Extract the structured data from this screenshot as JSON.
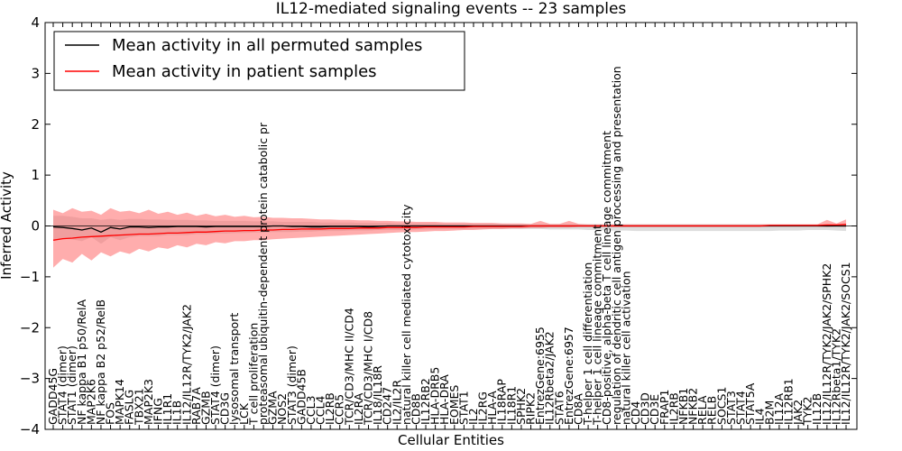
{
  "chart_data": {
    "type": "line",
    "title": "IL12-mediated signaling events -- 23 samples",
    "xlabel": "Cellular Entities",
    "ylabel": "Inferred Activity",
    "ylim": [
      -4,
      4
    ],
    "yticks": [
      "4",
      "3",
      "2",
      "1",
      "0",
      "−1",
      "−2",
      "−3",
      "−4"
    ],
    "yticks_values": [
      4,
      3,
      2,
      1,
      0,
      -1,
      -2,
      -3,
      -4
    ],
    "legend": {
      "placement": "top-left",
      "entries": [
        {
          "label": "Mean activity in all permuted samples",
          "color": "#000000"
        },
        {
          "label": "Mean activity in patient samples",
          "color": "#ff0000"
        }
      ]
    },
    "categories": [
      "GADD45G",
      "STAT4 (dimer)",
      "STAT1 (dimer)",
      "NF kappa B1 p50/RelA",
      "MAP2K6",
      "NF kappa B2 p52/RelB",
      "FOS",
      "MAPK14",
      "FASLG",
      "TBX21",
      "MAP2K3",
      "IFNG",
      "IL1R1",
      "IL1B",
      "IL12/IL12R/TYK2/JAK2",
      "RAB7A",
      "GZMB",
      "STAT4 (dimer)",
      "CD3G",
      "lysosomal transport",
      "LCK",
      "T cell proliferation",
      "proteasomal ubiquitin-dependent protein catabolic pr",
      "GZMA",
      "NOS2",
      "STAT3 (dimer)",
      "GADD45B",
      "CCL3",
      "CCL4",
      "IL2RB",
      "CCR5",
      "TCR/CD3/MHC II/CD4",
      "IL2RA",
      "TCR/CD3/MHC I/CD8",
      "IL18/IL18R",
      "CD247",
      "IL2/IL2R",
      "natural killer cell mediated cytotoxicity",
      "CD8B",
      "IL12RB2",
      "HLA-DRB5",
      "HLA-DRA",
      "EOMES",
      "STAT1",
      "IL2",
      "IL2RG",
      "HLA-A",
      "IL18RAP",
      "IL18R1",
      "SPHK2",
      "RIPK2",
      "EntrezGene:6955",
      "IL12Rbeta2/JAK2",
      "STAT6",
      "EntrezGene:6957",
      "CD8A",
      "T-helper 1 cell differentiation",
      "T-helper 1 cell lineage commitment",
      "CD8-positive, alpha-beta T cell lineage commitment",
      "regulation of dendritic cell antigen processing and presentation",
      "natural killer cell activation",
      "CD4",
      "CD3D",
      "CD3E",
      "FRAP1",
      "IL2RB",
      "NFKB1",
      "NFKB2",
      "RELA",
      "RELB",
      "SOCS1",
      "STAT3",
      "STAT4",
      "STAT5A",
      "IL4",
      "B2M",
      "IL12A",
      "IL12RB1",
      "JAK2",
      "TYK2",
      "IL12B",
      "IL12/IL12R/TYK2/JAK2/SPHK2",
      "IL12Rbeta1/TYK2",
      "IL12/IL12R/TYK2/JAK2/SOCS1"
    ],
    "series": [
      {
        "name": "Mean activity in all permuted samples",
        "color": "#000000",
        "values": [
          -0.02,
          -0.03,
          -0.05,
          -0.08,
          -0.04,
          -0.12,
          -0.03,
          -0.06,
          -0.02,
          -0.02,
          -0.03,
          -0.02,
          -0.02,
          -0.01,
          -0.01,
          -0.01,
          -0.02,
          -0.01,
          -0.01,
          -0.01,
          -0.01,
          -0.01,
          -0.01,
          0.0,
          0.0,
          -0.01,
          -0.01,
          -0.02,
          -0.02,
          -0.01,
          -0.01,
          -0.01,
          -0.01,
          -0.02,
          -0.01,
          0.0,
          0.0,
          0.0,
          0.0,
          0.0,
          0.0,
          0.0,
          0.0,
          0.0,
          0.0,
          0.0,
          0.0,
          0.0,
          0.0,
          0.0,
          0.0,
          0.0,
          0.0,
          0.0,
          0.0,
          0.0,
          0.0,
          0.0,
          0.0,
          0.0,
          0.0,
          0.0,
          0.0,
          0.0,
          0.0,
          0.0,
          0.0,
          0.0,
          0.0,
          0.0,
          0.0,
          0.0,
          0.0,
          0.0,
          0.0,
          0.0,
          0.0,
          0.0,
          0.0,
          0.0,
          0.0,
          0.0,
          0.0,
          0.0
        ]
      },
      {
        "name": "Mean activity in patient samples",
        "color": "#ff0000",
        "values": [
          -0.28,
          -0.25,
          -0.24,
          -0.22,
          -0.21,
          -0.2,
          -0.19,
          -0.18,
          -0.17,
          -0.16,
          -0.16,
          -0.15,
          -0.14,
          -0.14,
          -0.13,
          -0.12,
          -0.12,
          -0.11,
          -0.1,
          -0.1,
          -0.09,
          -0.09,
          -0.08,
          -0.08,
          -0.07,
          -0.07,
          -0.06,
          -0.06,
          -0.06,
          -0.05,
          -0.05,
          -0.05,
          -0.04,
          -0.04,
          -0.04,
          -0.03,
          -0.03,
          -0.03,
          -0.03,
          -0.02,
          -0.02,
          -0.02,
          -0.02,
          -0.02,
          -0.01,
          -0.01,
          -0.01,
          -0.01,
          -0.01,
          -0.01,
          0.0,
          0.0,
          0.0,
          0.0,
          0.0,
          0.0,
          0.0,
          0.0,
          0.0,
          0.0,
          0.0,
          0.0,
          0.0,
          0.0,
          0.0,
          0.0,
          0.0,
          0.0,
          0.0,
          0.0,
          0.0,
          0.0,
          0.0,
          0.0,
          0.0,
          0.01,
          0.01,
          0.01,
          0.01,
          0.01,
          0.01,
          0.02,
          0.02,
          0.03
        ]
      }
    ],
    "bands": [
      {
        "name": "permuted spread",
        "color": "#c8c8c8",
        "lower": [
          -0.28,
          -0.25,
          -0.26,
          -0.3,
          -0.22,
          -0.35,
          -0.22,
          -0.28,
          -0.22,
          -0.2,
          -0.2,
          -0.2,
          -0.18,
          -0.18,
          -0.18,
          -0.16,
          -0.16,
          -0.15,
          -0.15,
          -0.14,
          -0.14,
          -0.13,
          -0.13,
          -0.12,
          -0.12,
          -0.12,
          -0.11,
          -0.11,
          -0.1,
          -0.1,
          -0.1,
          -0.09,
          -0.09,
          -0.09,
          -0.08,
          -0.08,
          -0.08,
          -0.08,
          -0.07,
          -0.07,
          -0.07,
          -0.06,
          -0.06,
          -0.06,
          -0.06,
          -0.06,
          -0.06,
          -0.06,
          -0.06,
          -0.06,
          -0.06,
          -0.06,
          -0.07,
          -0.07,
          -0.07,
          -0.07,
          -0.08,
          -0.08,
          -0.09,
          -0.09,
          -0.09,
          -0.1,
          -0.1,
          -0.1,
          -0.1,
          -0.1,
          -0.1,
          -0.1,
          -0.1,
          -0.1,
          -0.1,
          -0.1,
          -0.1,
          -0.1,
          -0.1,
          -0.1,
          -0.09,
          -0.09,
          -0.09,
          -0.08,
          -0.08,
          -0.08,
          -0.09,
          -0.1
        ],
        "upper": [
          0.2,
          0.2,
          0.18,
          0.15,
          0.15,
          0.12,
          0.14,
          0.12,
          0.14,
          0.14,
          0.13,
          0.13,
          0.12,
          0.12,
          0.12,
          0.11,
          0.11,
          0.1,
          0.1,
          0.1,
          0.1,
          0.09,
          0.09,
          0.09,
          0.08,
          0.08,
          0.08,
          0.08,
          0.07,
          0.07,
          0.07,
          0.07,
          0.06,
          0.06,
          0.06,
          0.06,
          0.05,
          0.05,
          0.05,
          0.05,
          0.05,
          0.04,
          0.04,
          0.04,
          0.04,
          0.04,
          0.04,
          0.04,
          0.03,
          0.03,
          0.03,
          0.03,
          0.03,
          0.03,
          0.03,
          0.03,
          0.03,
          0.03,
          0.03,
          0.03,
          0.03,
          0.03,
          0.03,
          0.03,
          0.03,
          0.03,
          0.03,
          0.03,
          0.03,
          0.03,
          0.03,
          0.03,
          0.03,
          0.03,
          0.03,
          0.03,
          0.03,
          0.03,
          0.03,
          0.03,
          0.03,
          0.03,
          0.03,
          0.03
        ]
      },
      {
        "name": "patient spread",
        "color": "#ff6a6a",
        "lower": [
          -0.82,
          -0.65,
          -0.72,
          -0.55,
          -0.68,
          -0.52,
          -0.6,
          -0.5,
          -0.55,
          -0.45,
          -0.5,
          -0.42,
          -0.45,
          -0.38,
          -0.42,
          -0.35,
          -0.38,
          -0.32,
          -0.34,
          -0.3,
          -0.3,
          -0.28,
          -0.28,
          -0.26,
          -0.25,
          -0.24,
          -0.23,
          -0.22,
          -0.21,
          -0.2,
          -0.19,
          -0.18,
          -0.17,
          -0.16,
          -0.15,
          -0.14,
          -0.13,
          -0.12,
          -0.12,
          -0.11,
          -0.1,
          -0.1,
          -0.09,
          -0.08,
          -0.08,
          -0.07,
          -0.06,
          -0.06,
          -0.05,
          -0.05,
          -0.04,
          -0.04,
          -0.03,
          -0.03,
          -0.03,
          -0.02,
          -0.02,
          -0.02,
          -0.02,
          -0.02,
          -0.02,
          -0.02,
          -0.02,
          -0.02,
          -0.02,
          -0.02,
          -0.02,
          -0.02,
          -0.02,
          -0.02,
          -0.02,
          -0.02,
          -0.02,
          -0.02,
          -0.02,
          -0.01,
          -0.01,
          -0.01,
          -0.01,
          -0.01,
          -0.01,
          -0.02,
          -0.01,
          -0.02
        ],
        "upper": [
          0.32,
          0.25,
          0.35,
          0.28,
          0.3,
          0.22,
          0.35,
          0.28,
          0.3,
          0.25,
          0.32,
          0.24,
          0.28,
          0.22,
          0.26,
          0.2,
          0.24,
          0.19,
          0.22,
          0.18,
          0.2,
          0.17,
          0.18,
          0.16,
          0.16,
          0.15,
          0.15,
          0.14,
          0.13,
          0.13,
          0.12,
          0.12,
          0.11,
          0.11,
          0.1,
          0.1,
          0.09,
          0.09,
          0.08,
          0.08,
          0.08,
          0.07,
          0.07,
          0.07,
          0.06,
          0.06,
          0.06,
          0.05,
          0.05,
          0.05,
          0.04,
          0.1,
          0.04,
          0.04,
          0.1,
          0.04,
          0.03,
          0.03,
          0.03,
          0.03,
          0.03,
          0.03,
          0.03,
          0.03,
          0.03,
          0.03,
          0.03,
          0.03,
          0.03,
          0.03,
          0.03,
          0.03,
          0.03,
          0.03,
          0.03,
          0.03,
          0.03,
          0.03,
          0.03,
          0.03,
          0.03,
          0.12,
          0.05,
          0.13
        ]
      }
    ]
  }
}
